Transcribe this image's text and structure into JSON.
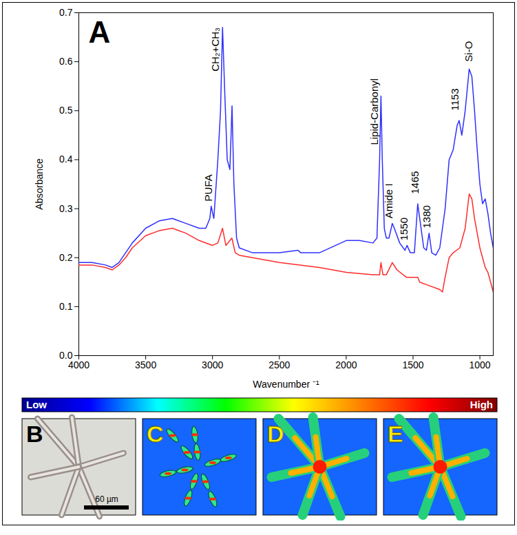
{
  "chart_data": {
    "type": "line",
    "panel_label": "A",
    "x_label": "Wavenumber ⁻¹",
    "y_label": "Absorbance",
    "xlim": [
      4000,
      900
    ],
    "xticks": [
      4000,
      3500,
      3000,
      2500,
      2000,
      1500,
      1000
    ],
    "ylim": [
      0,
      0.7
    ],
    "yticks": [
      {
        "value": 0,
        "label": "0.0"
      },
      0.1,
      0.2,
      0.3,
      0.4,
      0.5,
      0.6,
      0.7
    ],
    "series": [
      {
        "color": "#2f2fff",
        "x": [
          4000,
          3900,
          3800,
          3750,
          3700,
          3650,
          3600,
          3500,
          3400,
          3300,
          3200,
          3100,
          3050,
          3020,
          3010,
          2990,
          2960,
          2940,
          2925,
          2910,
          2890,
          2870,
          2854,
          2840,
          2820,
          2800,
          2700,
          2500,
          2360,
          2340,
          2200,
          2000,
          1900,
          1800,
          1770,
          1750,
          1740,
          1730,
          1715,
          1700,
          1680,
          1655,
          1640,
          1600,
          1560,
          1545,
          1520,
          1490,
          1465,
          1450,
          1420,
          1400,
          1380,
          1360,
          1330,
          1300,
          1260,
          1230,
          1200,
          1170,
          1155,
          1135,
          1110,
          1080,
          1060,
          1040,
          1020,
          1000,
          980,
          960,
          940,
          920,
          900
        ],
        "values": [
          0.19,
          0.19,
          0.185,
          0.18,
          0.19,
          0.21,
          0.23,
          0.26,
          0.275,
          0.28,
          0.27,
          0.26,
          0.26,
          0.28,
          0.305,
          0.28,
          0.4,
          0.5,
          0.67,
          0.55,
          0.4,
          0.38,
          0.51,
          0.35,
          0.24,
          0.22,
          0.21,
          0.21,
          0.215,
          0.21,
          0.21,
          0.235,
          0.235,
          0.23,
          0.24,
          0.4,
          0.53,
          0.4,
          0.26,
          0.24,
          0.24,
          0.27,
          0.26,
          0.23,
          0.215,
          0.225,
          0.21,
          0.21,
          0.31,
          0.28,
          0.22,
          0.215,
          0.25,
          0.21,
          0.205,
          0.22,
          0.3,
          0.4,
          0.42,
          0.47,
          0.48,
          0.45,
          0.5,
          0.585,
          0.57,
          0.5,
          0.42,
          0.35,
          0.31,
          0.32,
          0.29,
          0.25,
          0.22
        ]
      },
      {
        "color": "#ff2a2a",
        "x": [
          4000,
          3900,
          3800,
          3750,
          3700,
          3650,
          3600,
          3500,
          3400,
          3300,
          3200,
          3100,
          3000,
          2960,
          2925,
          2900,
          2855,
          2830,
          2800,
          2500,
          2200,
          2000,
          1800,
          1750,
          1740,
          1725,
          1700,
          1655,
          1620,
          1550,
          1465,
          1450,
          1400,
          1300,
          1280,
          1260,
          1230,
          1200,
          1150,
          1110,
          1080,
          1060,
          1040,
          1000,
          960,
          940,
          920,
          900
        ],
        "values": [
          0.185,
          0.185,
          0.18,
          0.175,
          0.185,
          0.2,
          0.22,
          0.245,
          0.255,
          0.26,
          0.25,
          0.235,
          0.225,
          0.23,
          0.26,
          0.225,
          0.24,
          0.21,
          0.205,
          0.19,
          0.18,
          0.17,
          0.165,
          0.165,
          0.19,
          0.165,
          0.165,
          0.19,
          0.175,
          0.16,
          0.16,
          0.15,
          0.145,
          0.135,
          0.13,
          0.16,
          0.2,
          0.21,
          0.22,
          0.26,
          0.33,
          0.32,
          0.28,
          0.22,
          0.18,
          0.17,
          0.15,
          0.13
        ]
      }
    ],
    "annotations": [
      {
        "text": "PUFA",
        "x": 3030,
        "y": 0.315
      },
      {
        "text": "CH₂+CH₃",
        "x": 2975,
        "y": 0.58
      },
      {
        "text": "Lipid-Carbonyl",
        "x": 1785,
        "y": 0.43
      },
      {
        "text": "Amide I",
        "x": 1680,
        "y": 0.28
      },
      {
        "text": "1550",
        "x": 1565,
        "y": 0.235
      },
      {
        "text": "1465",
        "x": 1485,
        "y": 0.33
      },
      {
        "text": "1380",
        "x": 1395,
        "y": 0.26
      },
      {
        "text": "1153",
        "x": 1185,
        "y": 0.5
      },
      {
        "text": "Si-O",
        "x": 1080,
        "y": 0.6
      }
    ]
  },
  "image_panels": {
    "colorbar": {
      "low": "Low",
      "high": "High"
    },
    "panels": [
      {
        "label": "B",
        "scale_bar": "60 µm"
      },
      {
        "label": "C"
      },
      {
        "label": "D"
      },
      {
        "label": "E"
      }
    ]
  }
}
